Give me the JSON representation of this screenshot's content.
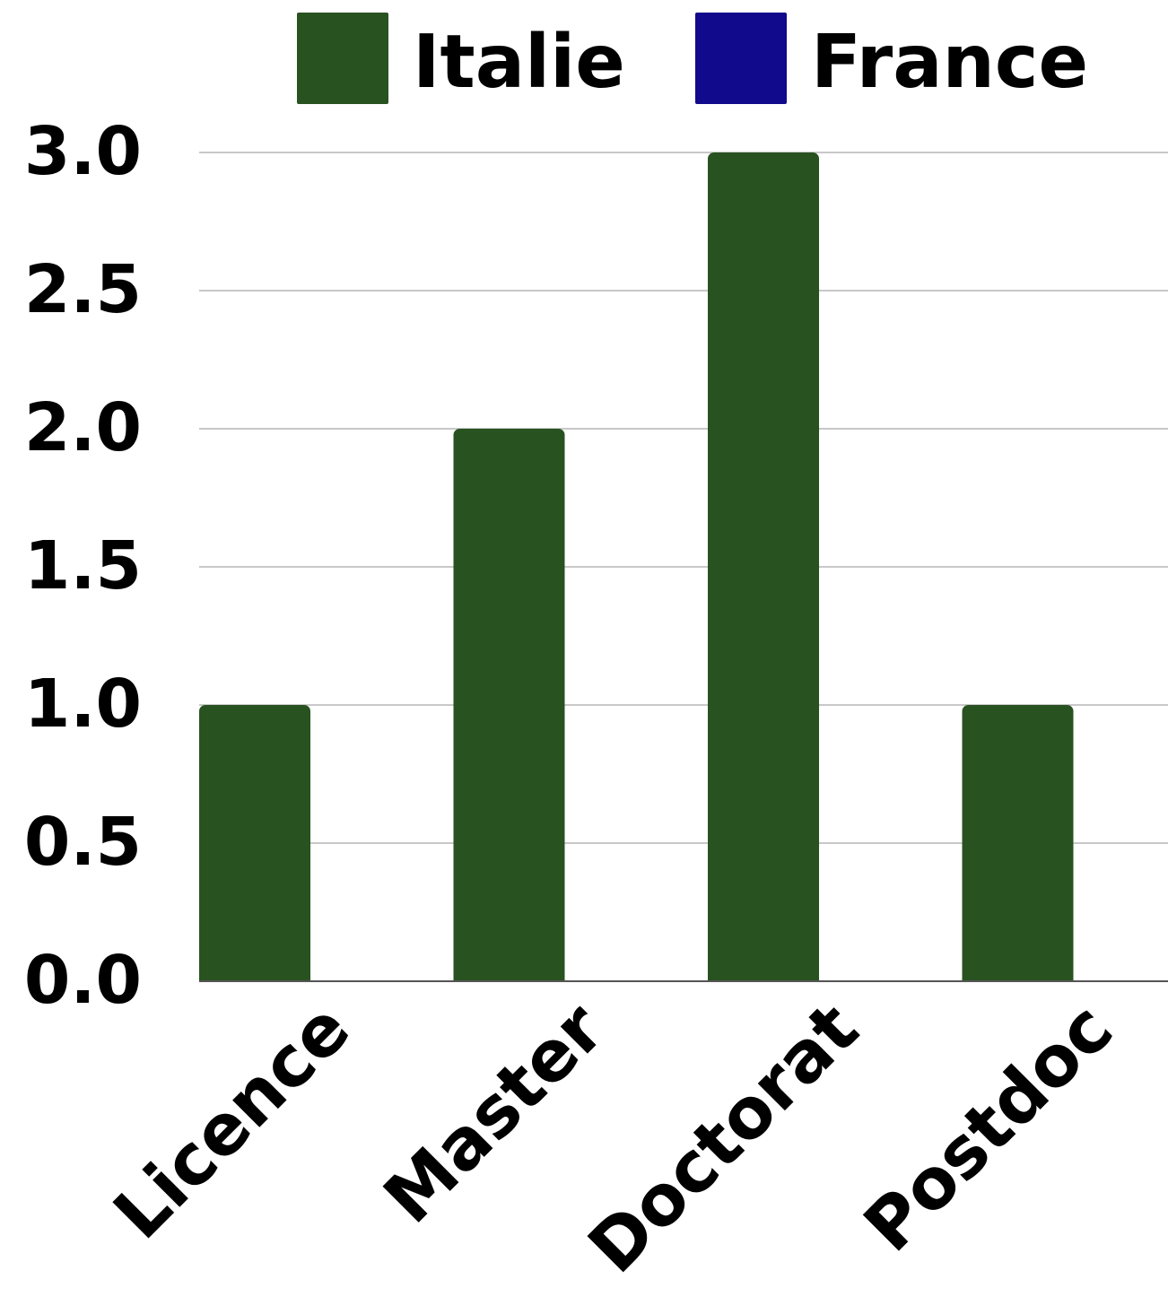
{
  "chart_data": {
    "type": "bar",
    "categories": [
      "Licence",
      "Master",
      "Doctorat",
      "Postdoc"
    ],
    "series": [
      {
        "name": "Italie",
        "color": "#285220",
        "values": [
          1,
          2,
          3,
          1
        ]
      },
      {
        "name": "France",
        "color": "#110a8c",
        "values": [
          0,
          0,
          0,
          0
        ]
      }
    ],
    "yticks": [
      "0.0",
      "0.5",
      "1.0",
      "1.5",
      "2.0",
      "2.5",
      "3.0"
    ],
    "ylim": [
      0,
      3
    ],
    "grid": true,
    "legend_position": "top"
  }
}
